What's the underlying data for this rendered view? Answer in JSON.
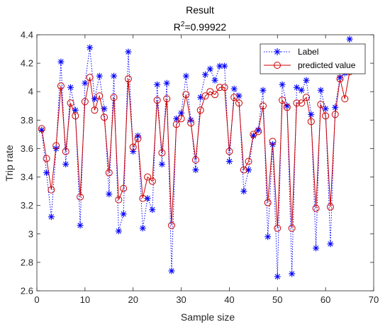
{
  "chart_data": {
    "type": "line",
    "title": "Result",
    "subtitle_prefix": "R",
    "subtitle_sup": "2",
    "subtitle_suffix": "=0.99922",
    "xlabel": "Sample size",
    "ylabel": "Trip rate",
    "xlim": [
      0,
      70
    ],
    "ylim": [
      2.6,
      4.4
    ],
    "xticks": [
      0,
      10,
      20,
      30,
      40,
      50,
      60,
      70
    ],
    "yticks": [
      2.6,
      2.8,
      3,
      3.2,
      3.4,
      3.6,
      3.8,
      4,
      4.2,
      4.4
    ],
    "grid": false,
    "legend_position": "top-right",
    "x": [
      1,
      2,
      3,
      4,
      5,
      6,
      7,
      8,
      9,
      10,
      11,
      12,
      13,
      14,
      15,
      16,
      17,
      18,
      19,
      20,
      21,
      22,
      23,
      24,
      25,
      26,
      27,
      28,
      29,
      30,
      31,
      32,
      33,
      34,
      35,
      36,
      37,
      38,
      39,
      40,
      41,
      42,
      43,
      44,
      45,
      46,
      47,
      48,
      49,
      50,
      51,
      52,
      53,
      54,
      55,
      56,
      57,
      58,
      59,
      60,
      61,
      62,
      63,
      64,
      65
    ],
    "series": [
      {
        "name": "Label",
        "color": "#0000ff",
        "line_style": "dotted",
        "marker": "asterisk",
        "values": [
          3.73,
          3.43,
          3.12,
          3.6,
          4.21,
          3.49,
          4.03,
          3.87,
          3.06,
          4.06,
          4.31,
          3.95,
          4.11,
          3.88,
          3.28,
          4.11,
          3.02,
          3.14,
          4.28,
          3.58,
          3.69,
          3.04,
          3.25,
          3.17,
          4.05,
          3.49,
          4.06,
          2.74,
          3.81,
          3.85,
          4.11,
          3.8,
          3.45,
          3.96,
          4.12,
          4.16,
          4.08,
          4.18,
          4.18,
          3.51,
          4.02,
          3.97,
          3.3,
          3.45,
          3.69,
          3.73,
          4.01,
          2.98,
          3.63,
          2.7,
          4.05,
          3.9,
          2.72,
          4.03,
          4.01,
          4.08,
          3.84,
          2.9,
          4.01,
          3.88,
          2.93,
          3.89,
          4.1,
          4.13,
          4.37
        ]
      },
      {
        "name": "predicted value",
        "color": "#cc0000",
        "line_style": "solid",
        "marker": "circle",
        "values": [
          3.74,
          3.53,
          3.31,
          3.62,
          4.04,
          3.58,
          3.92,
          3.83,
          3.26,
          3.93,
          4.1,
          3.87,
          3.97,
          3.82,
          3.43,
          3.96,
          3.24,
          3.32,
          4.09,
          3.61,
          3.67,
          3.25,
          3.4,
          3.37,
          3.94,
          3.57,
          3.95,
          3.06,
          3.77,
          3.81,
          3.98,
          3.78,
          3.52,
          3.87,
          3.97,
          4.0,
          3.98,
          4.03,
          4.03,
          3.58,
          3.96,
          3.92,
          3.45,
          3.51,
          3.7,
          3.72,
          3.9,
          3.22,
          3.65,
          3.04,
          3.94,
          3.89,
          3.04,
          3.92,
          3.92,
          3.96,
          3.79,
          3.18,
          3.91,
          3.83,
          3.19,
          3.84,
          4.09,
          3.95,
          4.14
        ]
      }
    ]
  }
}
